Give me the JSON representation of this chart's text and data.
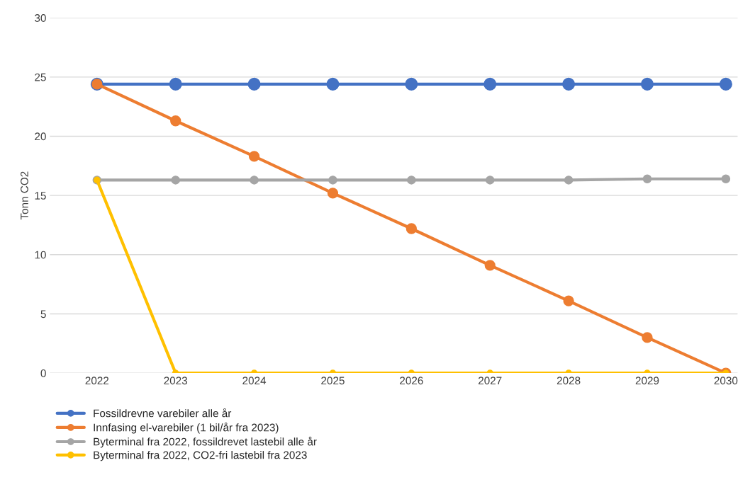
{
  "chart_data": {
    "type": "line",
    "ylabel": "Tonn CO2",
    "categories": [
      "2022",
      "2023",
      "2024",
      "2025",
      "2026",
      "2027",
      "2028",
      "2029",
      "2030"
    ],
    "series": [
      {
        "name": "Fossildrevne varebiler alle år",
        "color": "#4472c4",
        "values": [
          24.4,
          24.4,
          24.4,
          24.4,
          24.4,
          24.4,
          24.4,
          24.4,
          24.4
        ]
      },
      {
        "name": "Innfasing el-varebiler (1 bil/år fra 2023)",
        "color": "#ed7d31",
        "values": [
          24.4,
          21.3,
          18.3,
          15.2,
          12.2,
          9.1,
          6.1,
          3.0,
          0
        ]
      },
      {
        "name": "Byterminal fra 2022, fossildrevet lastebil alle år",
        "color": "#a5a5a5",
        "values": [
          16.3,
          16.3,
          16.3,
          16.3,
          16.3,
          16.3,
          16.3,
          16.4,
          16.4
        ]
      },
      {
        "name": "Byterminal fra 2022, CO2-fri lastebil fra 2023",
        "color": "#ffc000",
        "values": [
          16.3,
          0,
          0,
          0,
          0,
          0,
          0,
          0,
          0
        ]
      }
    ],
    "ylim": [
      0,
      30
    ],
    "yticks": [
      0,
      5,
      10,
      15,
      20,
      25,
      30
    ],
    "grid": "y",
    "legend": "bottom left",
    "marker": "circle",
    "line_style": "solid"
  }
}
